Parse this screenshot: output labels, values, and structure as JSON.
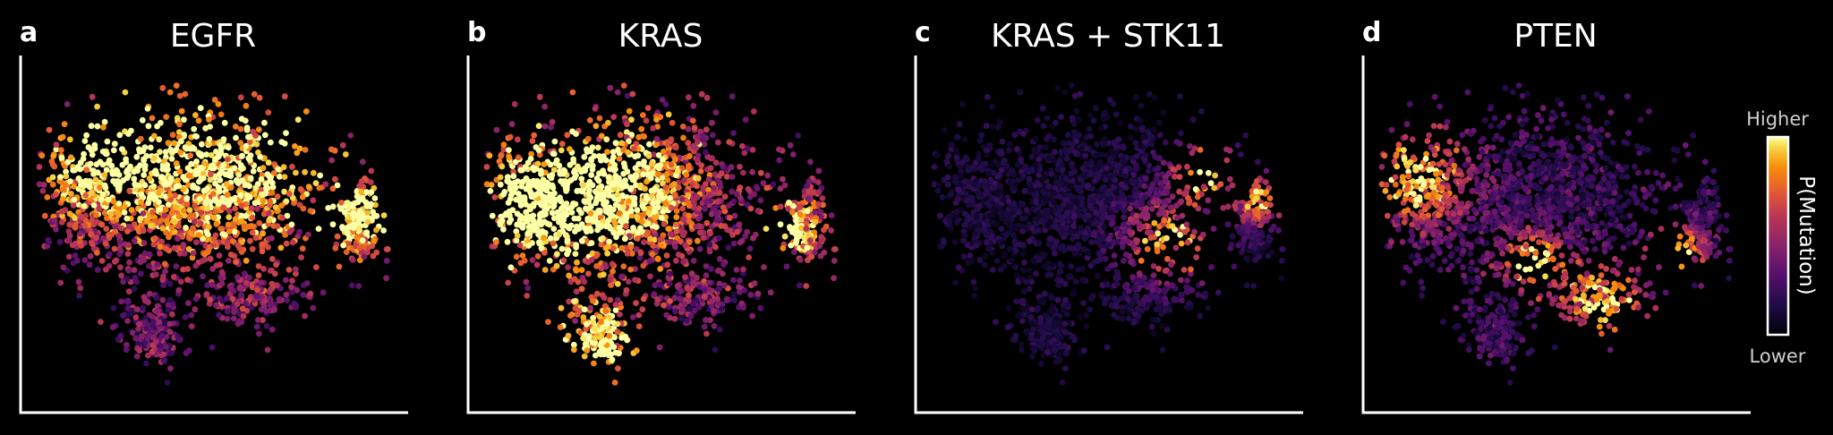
{
  "chart_data": {
    "type": "scatter",
    "colormap": "inferno",
    "background": "#000000",
    "panels": [
      {
        "letter": "a",
        "title": "EGFR",
        "hotspots": [
          [
            0.55,
            0.27,
            0.22
          ],
          [
            0.2,
            0.28,
            0.12
          ],
          [
            0.9,
            0.45,
            0.07
          ]
        ],
        "base": 0.45
      },
      {
        "letter": "b",
        "title": "KRAS",
        "hotspots": [
          [
            0.15,
            0.42,
            0.13
          ],
          [
            0.38,
            0.35,
            0.15
          ],
          [
            0.33,
            0.82,
            0.09
          ],
          [
            0.84,
            0.48,
            0.06
          ]
        ],
        "base": 0.5
      },
      {
        "letter": "c",
        "title": "KRAS + STK11",
        "hotspots": [
          [
            0.66,
            0.52,
            0.08
          ],
          [
            0.75,
            0.32,
            0.06
          ],
          [
            0.9,
            0.4,
            0.05
          ]
        ],
        "base": 0.18
      },
      {
        "letter": "d",
        "title": "PTEN",
        "hotspots": [
          [
            0.12,
            0.33,
            0.1
          ],
          [
            0.62,
            0.7,
            0.08
          ],
          [
            0.43,
            0.58,
            0.06
          ],
          [
            0.82,
            0.55,
            0.05
          ]
        ],
        "base": 0.3
      }
    ],
    "colorbar": {
      "label": "P(Mutation)",
      "high_label": "Higher",
      "low_label": "Lower"
    },
    "legend": "none",
    "grid": false
  }
}
